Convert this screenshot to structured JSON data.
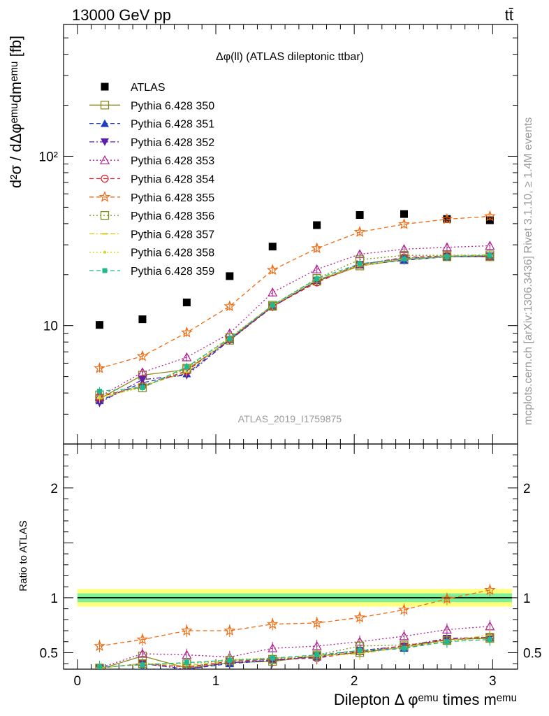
{
  "header": {
    "energy_label": "13000 GeV pp",
    "process_label": "tt̄",
    "plot_title": "Δφ(ll) (ATLAS dileptonic ttbar)",
    "analysis_id": "ATLAS_2019_I1759875",
    "side_rivet": "Rivet 3.1.10, ≥ 1.4M events",
    "side_site": "mcplots.cern.ch [arXiv:1306.3436]"
  },
  "chart_data": [
    {
      "type": "scatter",
      "name_id": "main",
      "ylabel": "d²σ / dΔφᵉᵐᵘdmᵉᵐᵘ [fb]",
      "yscale": "log",
      "ylim": [
        2,
        600
      ],
      "xlim": [
        -0.1,
        3.18
      ],
      "y_tick_labels": [
        "10",
        "10²"
      ],
      "legend_position": "top-left",
      "x": [
        0.16,
        0.47,
        0.79,
        1.1,
        1.41,
        1.73,
        2.04,
        2.36,
        2.67,
        2.98
      ],
      "series": [
        {
          "name": "ATLAS",
          "color": "#000000",
          "marker": "square-filled",
          "line": "none",
          "values": [
            10.1,
            10.9,
            13.7,
            19.6,
            29.3,
            39.2,
            45.0,
            45.6,
            42.6,
            41.9
          ]
        },
        {
          "name": "Pythia 6.428 350",
          "color": "#8c8c20",
          "marker": "square-open",
          "line": "solid",
          "values": [
            3.7,
            5.1,
            5.5,
            8.2,
            13.0,
            18.3,
            22.5,
            24.5,
            25.5,
            25.5
          ]
        },
        {
          "name": "Pythia 6.428 351",
          "color": "#1f3fbf",
          "marker": "triangle-up-filled",
          "line": "dashed",
          "values": [
            3.6,
            4.6,
            5.2,
            8.3,
            13.0,
            18.5,
            22.8,
            24.3,
            25.5,
            25.6
          ]
        },
        {
          "name": "Pythia 6.428 352",
          "color": "#5b1fa8",
          "marker": "triangle-down-filled",
          "line": "dashdot",
          "values": [
            3.5,
            4.8,
            5.1,
            8.2,
            12.9,
            18.4,
            23.0,
            25.0,
            25.6,
            25.8
          ]
        },
        {
          "name": "Pythia 6.428 353",
          "color": "#b01f8f",
          "marker": "triangle-up-open",
          "line": "dotted",
          "values": [
            3.8,
            5.3,
            6.5,
            9.0,
            15.7,
            21.5,
            26.4,
            28.3,
            29.0,
            29.6
          ]
        },
        {
          "name": "Pythia 6.428 354",
          "color": "#d81f2a",
          "marker": "circle-open",
          "line": "dashed",
          "values": [
            3.8,
            4.4,
            5.4,
            8.3,
            13.0,
            18.0,
            22.9,
            25.3,
            25.8,
            25.7
          ]
        },
        {
          "name": "Pythia 6.428 355",
          "color": "#f06a10",
          "marker": "star-open",
          "line": "dashed",
          "values": [
            5.6,
            6.6,
            9.1,
            13.0,
            21.3,
            28.6,
            35.7,
            39.7,
            42.5,
            44.2
          ]
        },
        {
          "name": "Pythia 6.428 356",
          "color": "#7f8c1a",
          "marker": "square-open",
          "line": "dotted",
          "values": [
            3.9,
            4.3,
            5.6,
            8.5,
            13.2,
            19.0,
            24.5,
            26.0,
            26.0,
            26.2
          ]
        },
        {
          "name": "Pythia 6.428 357",
          "color": "#d6c81a",
          "marker": "dash",
          "line": "dashdot",
          "values": [
            3.7,
            4.4,
            5.3,
            8.4,
            13.2,
            18.7,
            22.5,
            24.8,
            25.7,
            26.3
          ]
        },
        {
          "name": "Pythia 6.428 358",
          "color": "#c9d81a",
          "marker": "dot",
          "line": "dotted",
          "values": [
            3.8,
            4.3,
            5.7,
            8.5,
            13.1,
            18.6,
            22.8,
            24.6,
            25.5,
            26.0
          ]
        },
        {
          "name": "Pythia 6.428 359",
          "color": "#1fb890",
          "marker": "square-filled-small",
          "line": "dashed",
          "values": [
            4.1,
            4.3,
            5.7,
            8.4,
            13.2,
            18.9,
            23.2,
            24.8,
            25.6,
            26.0
          ]
        }
      ]
    },
    {
      "type": "scatter",
      "name_id": "ratio",
      "ylabel": "Ratio to ATLAS",
      "xlabel": "Dilepton Δ φᵉᵐᵘ times mᵉᵐᵘ",
      "ylim": [
        0.35,
        2.4
      ],
      "xlim": [
        -0.1,
        3.18
      ],
      "x_tick_labels": [
        "0",
        "1",
        "2",
        "3"
      ],
      "y_tick_labels": [
        "0.5",
        "1",
        "2"
      ],
      "band": {
        "inner": [
          0.96,
          1.04
        ],
        "outer": [
          0.92,
          1.08
        ],
        "inner_color": "#7ff09a",
        "outer_color": "#ffff7a"
      },
      "x": [
        0.16,
        0.47,
        0.79,
        1.1,
        1.41,
        1.73,
        2.04,
        2.36,
        2.67,
        2.98
      ],
      "series": [
        {
          "name": "Pythia 6.428 350",
          "values": [
            0.35,
            0.47,
            0.36,
            0.41,
            0.42,
            0.47,
            0.5,
            0.55,
            0.62,
            0.63
          ]
        },
        {
          "name": "Pythia 6.428 351",
          "values": [
            0.34,
            0.35,
            0.35,
            0.4,
            0.43,
            0.46,
            0.51,
            0.54,
            0.62,
            0.64
          ]
        },
        {
          "name": "Pythia 6.428 352",
          "values": [
            0.36,
            0.4,
            0.35,
            0.41,
            0.43,
            0.47,
            0.52,
            0.56,
            0.63,
            0.64
          ]
        },
        {
          "name": "Pythia 6.428 353",
          "values": [
            0.36,
            0.49,
            0.48,
            0.46,
            0.54,
            0.56,
            0.6,
            0.65,
            0.71,
            0.74
          ]
        },
        {
          "name": "Pythia 6.428 354",
          "values": [
            0.36,
            0.4,
            0.37,
            0.42,
            0.44,
            0.45,
            0.51,
            0.56,
            0.62,
            0.64
          ]
        },
        {
          "name": "Pythia 6.428 355",
          "values": [
            0.56,
            0.62,
            0.7,
            0.7,
            0.76,
            0.77,
            0.82,
            0.89,
            0.99,
            1.07
          ]
        },
        {
          "name": "Pythia 6.428 356",
          "values": [
            0.36,
            0.4,
            0.4,
            0.43,
            0.44,
            0.48,
            0.56,
            0.57,
            0.61,
            0.64
          ]
        },
        {
          "name": "Pythia 6.428 357",
          "values": [
            0.36,
            0.4,
            0.38,
            0.43,
            0.45,
            0.47,
            0.49,
            0.55,
            0.61,
            0.66
          ]
        },
        {
          "name": "Pythia 6.428 358",
          "values": [
            0.36,
            0.4,
            0.4,
            0.44,
            0.45,
            0.47,
            0.51,
            0.55,
            0.6,
            0.62
          ]
        },
        {
          "name": "Pythia 6.428 359",
          "values": [
            0.37,
            0.39,
            0.41,
            0.43,
            0.45,
            0.48,
            0.52,
            0.54,
            0.6,
            0.62
          ]
        }
      ]
    }
  ]
}
